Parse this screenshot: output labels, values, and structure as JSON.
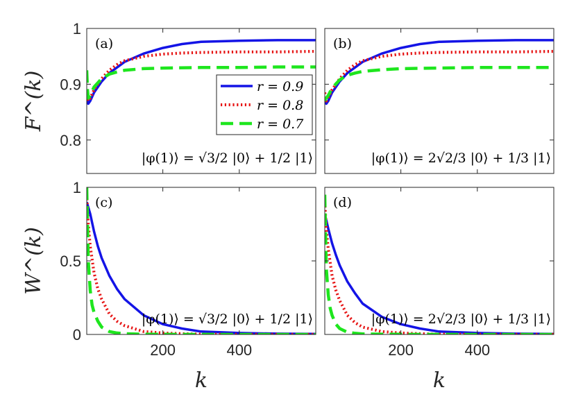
{
  "chart_data": [
    {
      "type": "line",
      "panel": "(a)",
      "ylabel": "F^(k)",
      "xlabel": "",
      "xlim": [
        1,
        600
      ],
      "ylim": [
        0.74,
        1.0
      ],
      "xticks": [
        200,
        400
      ],
      "xtick_labels": [
        "",
        ""
      ],
      "yticks": [
        0.8,
        0.9,
        1.0
      ],
      "ytick_labels": [
        "0.8",
        "0.9",
        "1"
      ],
      "annotation": "|φ(1)⟩ = √3/2 |0⟩ + 1/2 |1⟩",
      "legend": [
        "r = 0.9",
        "r = 0.8",
        "r = 0.7"
      ],
      "legend_position": "center-right",
      "series": [
        {
          "name": "r = 0.9",
          "color": "#1414e6",
          "style": "solid",
          "x": [
            1,
            5,
            10,
            20,
            40,
            60,
            80,
            100,
            150,
            200,
            250,
            300,
            400,
            500,
            600
          ],
          "y": [
            0.875,
            0.865,
            0.87,
            0.885,
            0.905,
            0.92,
            0.93,
            0.94,
            0.955,
            0.965,
            0.972,
            0.976,
            0.978,
            0.979,
            0.979
          ]
        },
        {
          "name": "r = 0.8",
          "color": "#e61414",
          "style": "dotted",
          "x": [
            1,
            5,
            10,
            20,
            40,
            60,
            80,
            100,
            150,
            200,
            250,
            300,
            400,
            500,
            600
          ],
          "y": [
            0.88,
            0.87,
            0.875,
            0.89,
            0.91,
            0.925,
            0.935,
            0.942,
            0.95,
            0.954,
            0.956,
            0.957,
            0.958,
            0.958,
            0.959
          ]
        },
        {
          "name": "r = 0.7",
          "color": "#1ee61e",
          "style": "dashed",
          "x": [
            1,
            3,
            5,
            10,
            20,
            40,
            60,
            80,
            100,
            150,
            200,
            300,
            400,
            500,
            600
          ],
          "y": [
            0.925,
            0.89,
            0.875,
            0.88,
            0.895,
            0.91,
            0.918,
            0.922,
            0.925,
            0.928,
            0.929,
            0.93,
            0.93,
            0.931,
            0.931
          ]
        }
      ]
    },
    {
      "type": "line",
      "panel": "(b)",
      "ylabel": "",
      "xlabel": "",
      "xlim": [
        1,
        600
      ],
      "ylim": [
        0.74,
        1.0
      ],
      "xticks": [
        200,
        400
      ],
      "xtick_labels": [
        "",
        ""
      ],
      "yticks": [
        0.8,
        0.9,
        1.0
      ],
      "ytick_labels": [
        "",
        "",
        ""
      ],
      "annotation": "|φ(1)⟩ = 2√2/3 |0⟩ + 1/3 |1⟩",
      "series": [
        {
          "name": "r = 0.9",
          "color": "#1414e6",
          "style": "solid",
          "x": [
            1,
            5,
            10,
            20,
            40,
            60,
            80,
            100,
            150,
            200,
            250,
            300,
            400,
            500,
            600
          ],
          "y": [
            0.875,
            0.865,
            0.87,
            0.885,
            0.905,
            0.92,
            0.93,
            0.94,
            0.955,
            0.965,
            0.972,
            0.976,
            0.978,
            0.979,
            0.979
          ]
        },
        {
          "name": "r = 0.8",
          "color": "#e61414",
          "style": "dotted",
          "x": [
            1,
            5,
            10,
            20,
            40,
            60,
            80,
            100,
            150,
            200,
            250,
            300,
            400,
            500,
            600
          ],
          "y": [
            0.885,
            0.87,
            0.875,
            0.89,
            0.91,
            0.925,
            0.935,
            0.942,
            0.95,
            0.954,
            0.956,
            0.957,
            0.958,
            0.958,
            0.959
          ]
        },
        {
          "name": "r = 0.7",
          "color": "#1ee61e",
          "style": "dashed",
          "x": [
            1,
            3,
            5,
            10,
            20,
            40,
            60,
            80,
            100,
            150,
            200,
            300,
            400,
            500,
            600
          ],
          "y": [
            0.87,
            0.875,
            0.875,
            0.88,
            0.893,
            0.908,
            0.916,
            0.92,
            0.923,
            0.926,
            0.928,
            0.929,
            0.93,
            0.93,
            0.93
          ]
        }
      ]
    },
    {
      "type": "line",
      "panel": "(c)",
      "ylabel": "W^(k)",
      "xlabel": "k",
      "xlim": [
        1,
        600
      ],
      "ylim": [
        0,
        1.0
      ],
      "xticks": [
        200,
        400
      ],
      "xtick_labels": [
        "200",
        "400"
      ],
      "yticks": [
        0,
        0.5,
        1.0
      ],
      "ytick_labels": [
        "0",
        "0.5",
        "1"
      ],
      "annotation": "|φ(1)⟩ = √3/2 |0⟩ + 1/2 |1⟩",
      "series": [
        {
          "name": "r = 0.9",
          "color": "#1414e6",
          "style": "solid",
          "x": [
            1,
            10,
            20,
            30,
            40,
            60,
            80,
            100,
            150,
            200,
            250,
            300,
            400,
            500,
            600
          ],
          "y": [
            0.9,
            0.82,
            0.7,
            0.6,
            0.52,
            0.4,
            0.31,
            0.24,
            0.13,
            0.07,
            0.04,
            0.02,
            0.01,
            0.005,
            0.004
          ]
        },
        {
          "name": "r = 0.8",
          "color": "#e61414",
          "style": "dotted",
          "x": [
            1,
            5,
            10,
            20,
            30,
            40,
            60,
            80,
            100,
            150,
            200,
            250,
            300,
            400,
            600
          ],
          "y": [
            0.95,
            0.75,
            0.6,
            0.42,
            0.31,
            0.24,
            0.14,
            0.09,
            0.06,
            0.02,
            0.01,
            0.005,
            0.002,
            0.001,
            0.001
          ]
        },
        {
          "name": "r = 0.7",
          "color": "#1ee61e",
          "style": "dashed",
          "x": [
            1,
            5,
            10,
            15,
            20,
            30,
            40,
            60,
            80,
            100,
            150,
            200,
            400,
            600
          ],
          "y": [
            1.0,
            0.5,
            0.3,
            0.2,
            0.15,
            0.09,
            0.05,
            0.02,
            0.01,
            0.005,
            0.002,
            0.001,
            0.0,
            0.0
          ]
        }
      ]
    },
    {
      "type": "line",
      "panel": "(d)",
      "ylabel": "",
      "xlabel": "k",
      "xlim": [
        1,
        600
      ],
      "ylim": [
        0,
        1.0
      ],
      "xticks": [
        200,
        400
      ],
      "xtick_labels": [
        "200",
        "400"
      ],
      "yticks": [
        0,
        0.5,
        1.0
      ],
      "ytick_labels": [
        "",
        "",
        ""
      ],
      "annotation": "|φ(1)⟩ = 2√2/3 |0⟩ + 1/3 |1⟩",
      "series": [
        {
          "name": "r = 0.9",
          "color": "#1414e6",
          "style": "solid",
          "x": [
            1,
            10,
            20,
            30,
            40,
            60,
            80,
            100,
            150,
            200,
            250,
            300,
            400,
            500,
            600
          ],
          "y": [
            0.82,
            0.72,
            0.62,
            0.54,
            0.47,
            0.36,
            0.28,
            0.21,
            0.12,
            0.07,
            0.04,
            0.02,
            0.01,
            0.005,
            0.004
          ]
        },
        {
          "name": "r = 0.8",
          "color": "#e61414",
          "style": "dotted",
          "x": [
            1,
            5,
            10,
            20,
            30,
            40,
            60,
            80,
            100,
            150,
            200,
            250,
            300,
            400,
            600
          ],
          "y": [
            0.9,
            0.72,
            0.58,
            0.4,
            0.3,
            0.23,
            0.13,
            0.08,
            0.05,
            0.02,
            0.01,
            0.005,
            0.002,
            0.001,
            0.001
          ]
        },
        {
          "name": "r = 0.7",
          "color": "#1ee61e",
          "style": "dashed",
          "x": [
            1,
            5,
            10,
            15,
            20,
            30,
            40,
            60,
            80,
            100,
            150,
            200,
            400,
            600
          ],
          "y": [
            0.95,
            0.45,
            0.27,
            0.18,
            0.13,
            0.07,
            0.04,
            0.015,
            0.008,
            0.004,
            0.002,
            0.001,
            0.0,
            0.0
          ]
        }
      ]
    }
  ]
}
